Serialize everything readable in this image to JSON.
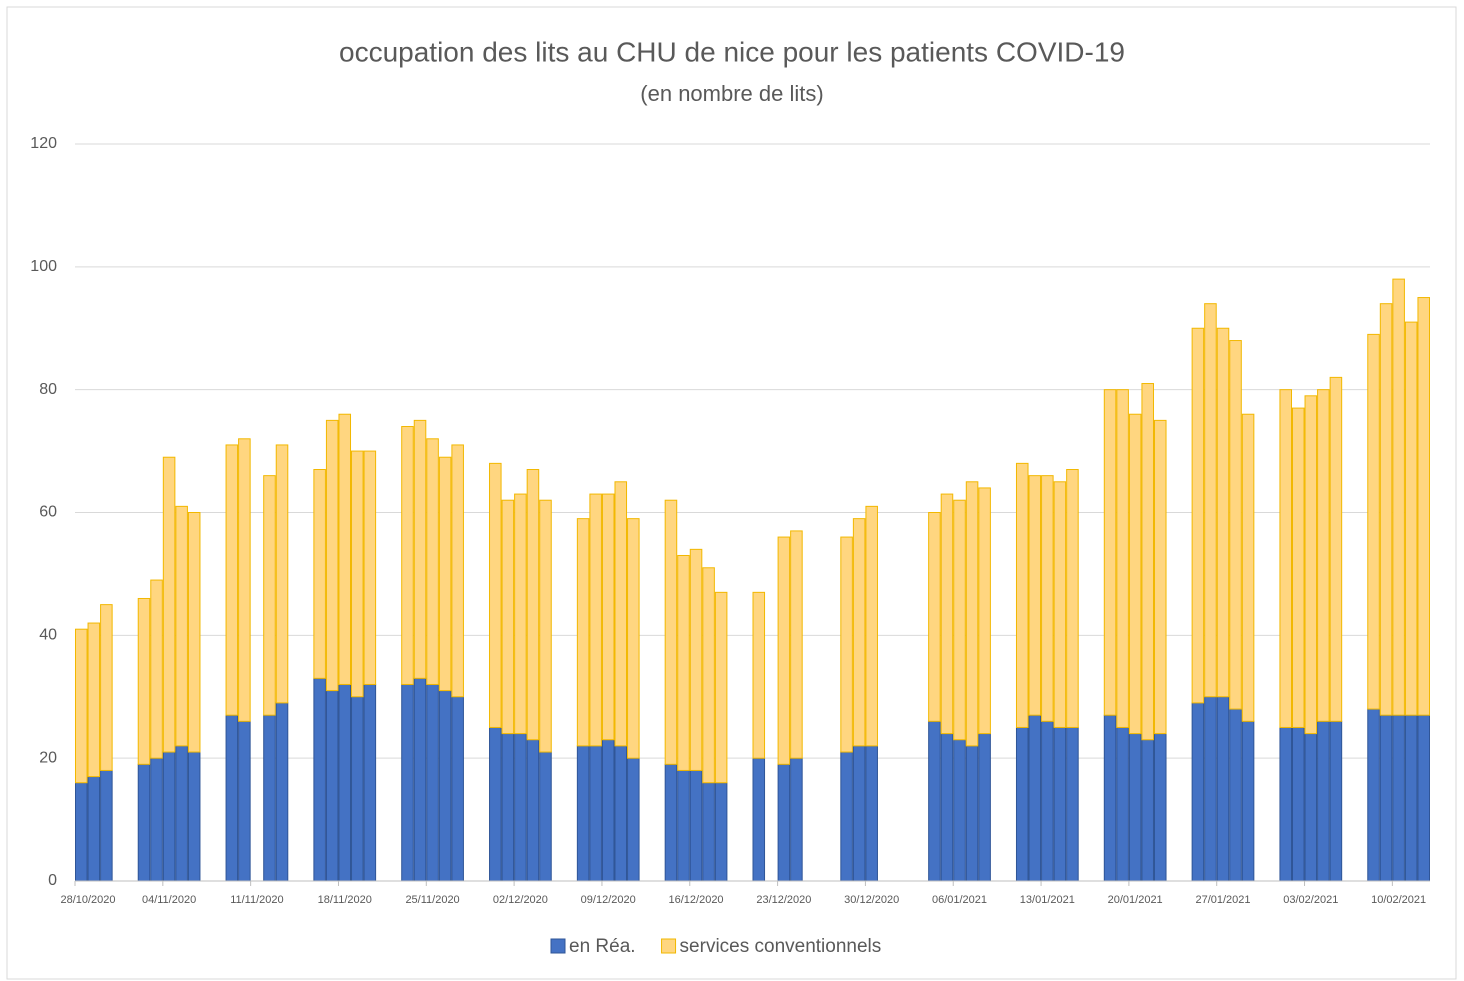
{
  "chart_data": {
    "type": "stacked_bar",
    "title": "occupation des lits au CHU de nice pour les patients COVID-19",
    "subtitle": "(en nombre de lits)",
    "categories": [
      "28/10/2020",
      null,
      null,
      null,
      null,
      null,
      null,
      "04/11/2020",
      null,
      null,
      null,
      null,
      null,
      null,
      "11/11/2020",
      null,
      null,
      null,
      null,
      null,
      null,
      "18/11/2020",
      null,
      null,
      null,
      null,
      null,
      null,
      "25/11/2020",
      null,
      null,
      null,
      null,
      null,
      null,
      "02/12/2020",
      null,
      null,
      null,
      null,
      null,
      null,
      "09/12/2020",
      null,
      null,
      null,
      null,
      null,
      null,
      "16/12/2020",
      null,
      null,
      null,
      null,
      null,
      null,
      "23/12/2020",
      null,
      null,
      null,
      null,
      null,
      null,
      "30/12/2020",
      null,
      null,
      null,
      null,
      null,
      null,
      "06/01/2021",
      null,
      null,
      null,
      null,
      null,
      null,
      "13/01/2021",
      null,
      null,
      null,
      null,
      null,
      null,
      "20/01/2021",
      null,
      null,
      null,
      null,
      null,
      null,
      "27/01/2021",
      null,
      null,
      null,
      null,
      null,
      null,
      "03/02/2021",
      null,
      null,
      null,
      null,
      null,
      null,
      "10/02/2021",
      null,
      null
    ],
    "series": [
      {
        "name": "en Réa.",
        "color": "#4472c4",
        "values": [
          16,
          17,
          18,
          null,
          null,
          19,
          20,
          21,
          22,
          21,
          null,
          null,
          27,
          26,
          null,
          27,
          29,
          null,
          null,
          33,
          31,
          32,
          30,
          32,
          null,
          null,
          32,
          33,
          32,
          31,
          30,
          null,
          null,
          25,
          24,
          24,
          23,
          21,
          null,
          null,
          22,
          22,
          23,
          22,
          20,
          null,
          null,
          19,
          18,
          18,
          16,
          16,
          null,
          null,
          20,
          null,
          19,
          20,
          null,
          null,
          null,
          21,
          22,
          22,
          null,
          null,
          null,
          null,
          26,
          24,
          23,
          22,
          24,
          null,
          null,
          25,
          27,
          26,
          25,
          25,
          null,
          null,
          27,
          25,
          24,
          23,
          24,
          null,
          null,
          29,
          30,
          30,
          28,
          26,
          null,
          null,
          25,
          25,
          24,
          26,
          26,
          null,
          null,
          28,
          27,
          27,
          27,
          27
        ]
      },
      {
        "name": "services conventionnels",
        "color": "#ffd680",
        "values": [
          25,
          25,
          27,
          null,
          null,
          27,
          29,
          48,
          39,
          39,
          null,
          null,
          44,
          46,
          null,
          39,
          42,
          null,
          null,
          34,
          44,
          44,
          40,
          38,
          null,
          null,
          42,
          42,
          40,
          38,
          41,
          null,
          null,
          43,
          38,
          39,
          44,
          41,
          null,
          null,
          37,
          41,
          40,
          43,
          39,
          null,
          null,
          43,
          35,
          36,
          35,
          31,
          null,
          null,
          27,
          null,
          37,
          37,
          null,
          null,
          null,
          35,
          37,
          39,
          null,
          null,
          null,
          null,
          34,
          39,
          39,
          43,
          40,
          null,
          null,
          43,
          39,
          40,
          40,
          42,
          null,
          null,
          53,
          55,
          52,
          58,
          51,
          null,
          null,
          61,
          64,
          60,
          60,
          50,
          null,
          null,
          55,
          52,
          55,
          54,
          56,
          null,
          null,
          61,
          67,
          71,
          64,
          68
        ]
      }
    ],
    "ylim": [
      0,
      120
    ],
    "yticks": [
      0,
      20,
      40,
      60,
      80,
      100,
      120
    ],
    "grid": true,
    "legend": "bottom"
  }
}
